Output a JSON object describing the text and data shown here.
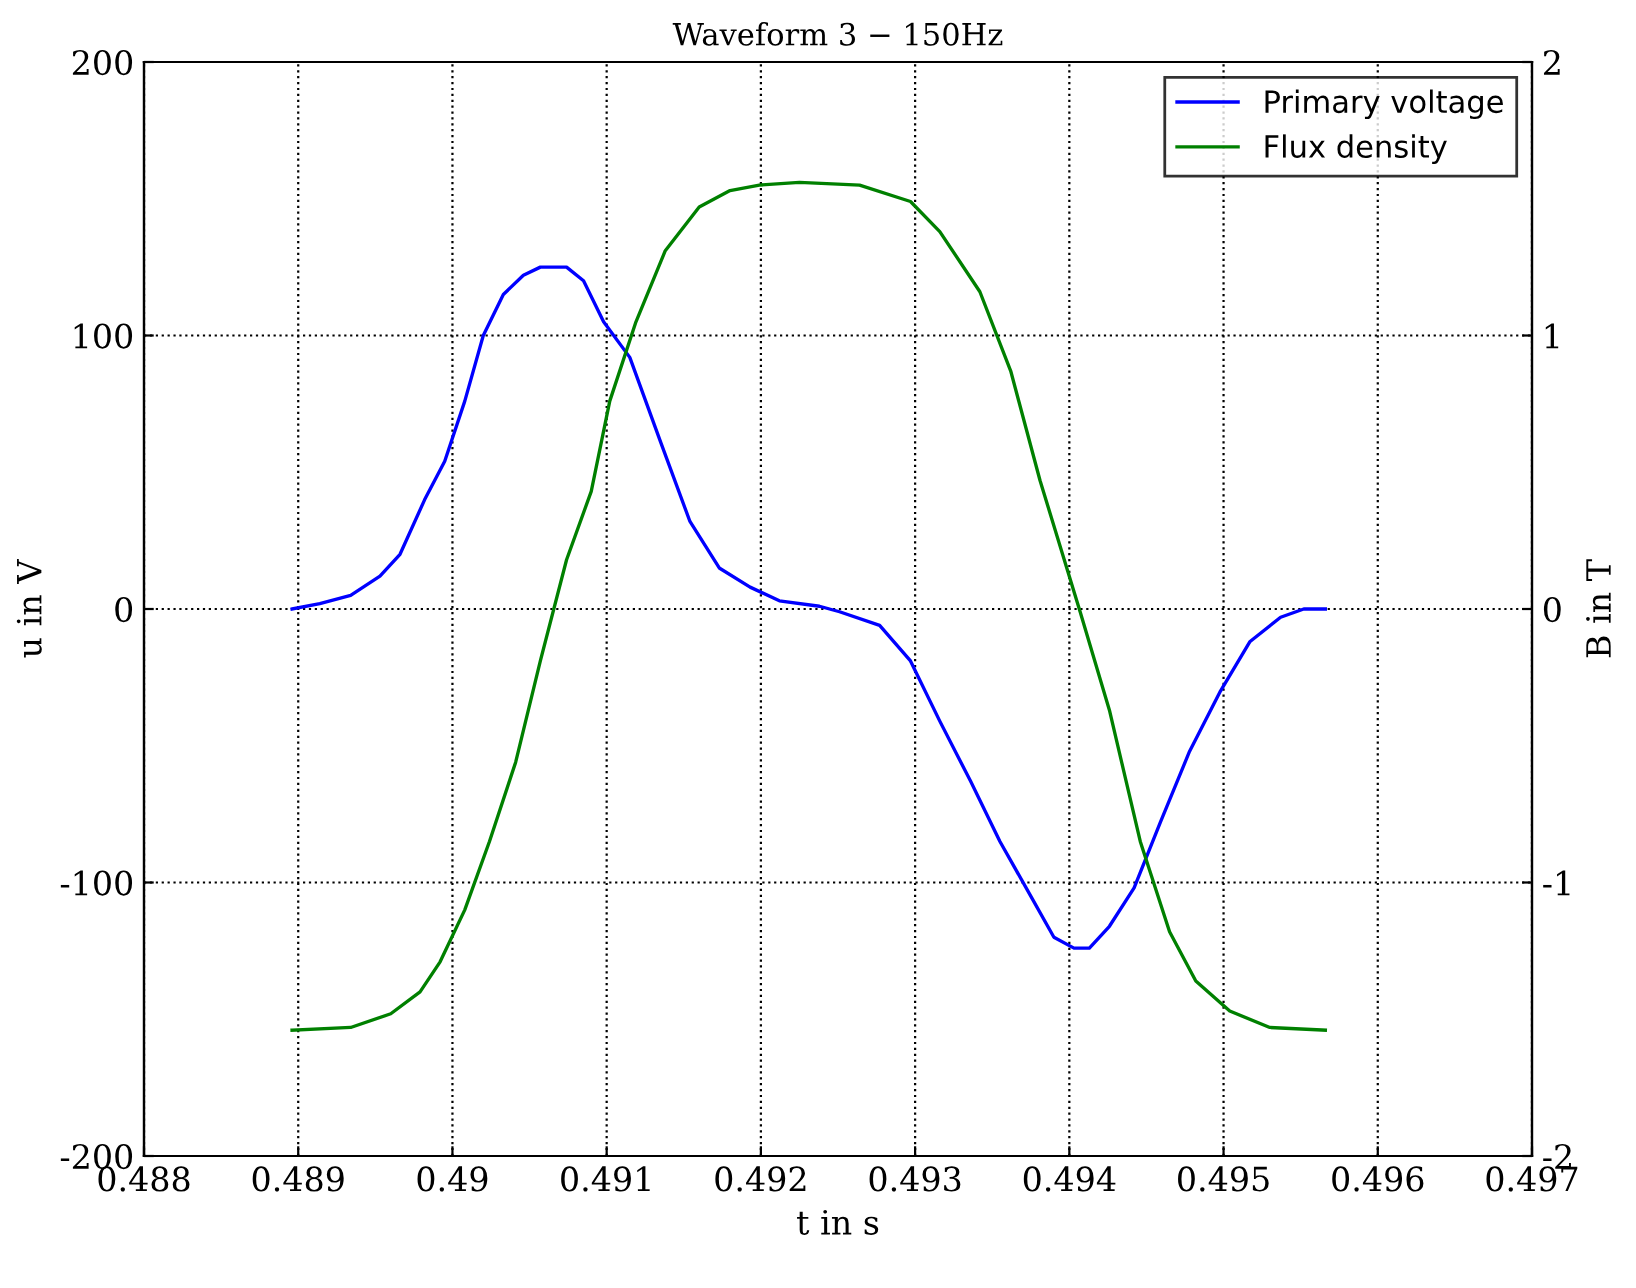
{
  "chart_data": {
    "type": "line",
    "title": "Waveform 3 − 150Hz",
    "xlabel": "t in s",
    "ylabel": "u in V",
    "y2label": "B in T",
    "xlim": [
      0.488,
      0.497
    ],
    "xticks": [
      0.488,
      0.489,
      0.49,
      0.491,
      0.492,
      0.493,
      0.494,
      0.495,
      0.496,
      0.497
    ],
    "ylim": [
      -200,
      200
    ],
    "yticks": [
      {
        "value": -200,
        "label": "-200"
      },
      {
        "value": -100,
        "label": "-100"
      },
      0,
      100,
      200
    ],
    "y2lim": [
      -2,
      2
    ],
    "y2ticks": [
      {
        "value": -2,
        "label": "-2"
      },
      {
        "value": -1,
        "label": "-1"
      },
      0,
      1,
      2
    ],
    "grid": true,
    "legend": "top right",
    "line_style": "solid",
    "marker": "none",
    "series": [
      {
        "name": "Primary voltage",
        "color": "#0000ff",
        "x": [
          0.48896,
          0.48914,
          0.48934,
          0.48953,
          0.48966,
          0.48982,
          0.48995,
          0.49008,
          0.4902,
          0.49033,
          0.49046,
          0.49057,
          0.49074,
          0.49085,
          0.49098,
          0.49115,
          0.49135,
          0.49154,
          0.49173,
          0.49193,
          0.49212,
          0.49238,
          0.49251,
          0.49277,
          0.49297,
          0.49316,
          0.49336,
          0.49355,
          0.49375,
          0.4939,
          0.49403,
          0.49413,
          0.49426,
          0.49442,
          0.49459,
          0.49478,
          0.49498,
          0.49517,
          0.49537,
          0.49552,
          0.49566
        ],
        "values": [
          0,
          2,
          5,
          12,
          20,
          40,
          54,
          76,
          100,
          115,
          122,
          125,
          125,
          120,
          105,
          92,
          61,
          32,
          15,
          8,
          3,
          1,
          -1,
          -6,
          -19,
          -41,
          -63,
          -85,
          -105,
          -120,
          -124,
          -124,
          -116,
          -102,
          -78,
          -52,
          -30,
          -12,
          -3,
          0,
          0
        ]
      },
      {
        "name": "Flux density",
        "color": "#008000",
        "axis": "y2",
        "x": [
          0.48896,
          0.48934,
          0.4896,
          0.48979,
          0.48992,
          0.49008,
          0.49024,
          0.49041,
          0.49057,
          0.49074,
          0.4909,
          0.49102,
          0.49119,
          0.49138,
          0.4916,
          0.4918,
          0.49199,
          0.49225,
          0.49264,
          0.49297,
          0.49316,
          0.49342,
          0.49362,
          0.49381,
          0.49407,
          0.49426,
          0.49446,
          0.49465,
          0.49482,
          0.49504,
          0.4953,
          0.49566
        ],
        "values": [
          -1.54,
          -1.53,
          -1.48,
          -1.4,
          -1.29,
          -1.1,
          -0.85,
          -0.56,
          -0.19,
          0.18,
          0.43,
          0.76,
          1.05,
          1.31,
          1.47,
          1.53,
          1.55,
          1.56,
          1.55,
          1.49,
          1.38,
          1.16,
          0.87,
          0.47,
          -0.01,
          -0.37,
          -0.85,
          -1.18,
          -1.36,
          -1.47,
          -1.53,
          -1.54
        ]
      }
    ]
  }
}
